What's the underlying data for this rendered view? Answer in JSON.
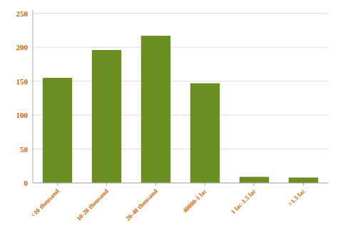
{
  "chart_data": {
    "type": "bar",
    "categories": [
      "<10 thousand",
      "10-20 thousand",
      "20-40 thousand",
      "40000-1 lac",
      "1 lac-1.5 lac",
      ">1.5 lac"
    ],
    "values": [
      155,
      196,
      217,
      147,
      9,
      8
    ],
    "color": "#6b8e23",
    "ylim": [
      0,
      255
    ],
    "yticks": [
      0,
      50,
      100,
      150,
      200,
      250
    ],
    "grid": true
  }
}
